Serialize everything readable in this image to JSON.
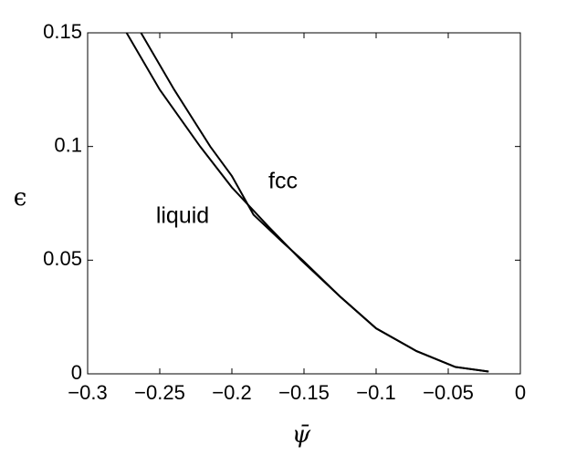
{
  "chart_data": {
    "type": "line",
    "x_label": "ψ̄",
    "y_label": "ϵ",
    "annotations": [
      "liquid",
      "fcc"
    ],
    "series": [
      {
        "color": "#000000",
        "x": [
          -0.273,
          -0.25,
          -0.222,
          -0.2,
          -0.175,
          -0.152,
          -0.125,
          -0.1,
          -0.072,
          -0.045,
          -0.022
        ],
        "values": [
          0.15,
          0.125,
          0.1,
          0.082,
          0.065,
          0.05,
          0.034,
          0.02,
          0.01,
          0.003,
          0.001
        ]
      },
      {
        "color": "#000000",
        "x": [
          -0.263,
          -0.24,
          -0.215,
          -0.2,
          -0.185,
          -0.165,
          -0.151,
          -0.125,
          -0.1,
          -0.072,
          -0.045,
          -0.022
        ],
        "values": [
          0.15,
          0.125,
          0.1,
          0.087,
          0.07,
          0.058,
          0.05,
          0.034,
          0.02,
          0.01,
          0.003,
          0.001
        ]
      }
    ],
    "xlim": [
      -0.3,
      0
    ],
    "ylim": [
      0,
      0.15
    ],
    "xticks": [
      {
        "value": -0.3,
        "label": "−0.3"
      },
      {
        "value": -0.25,
        "label": "−0.25"
      },
      {
        "value": -0.2,
        "label": "−0.2"
      },
      {
        "value": -0.15,
        "label": "−0.15"
      },
      {
        "value": -0.1,
        "label": "−0.1"
      },
      {
        "value": -0.05,
        "label": "−0.05"
      },
      0
    ],
    "yticks": [
      0,
      0.05,
      0.1,
      0.15
    ]
  }
}
